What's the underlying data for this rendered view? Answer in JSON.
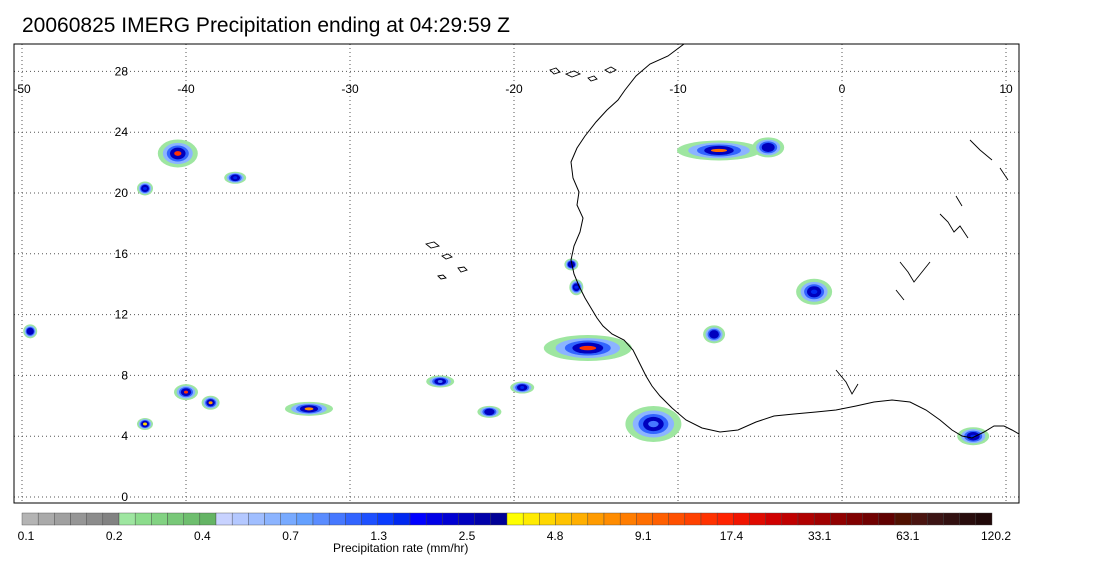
{
  "title": "20060825 IMERG Precipitation ending at 04:29:59 Z",
  "map": {
    "lon_labels": [
      "-50",
      "-40",
      "-30",
      "-20",
      "-10",
      "0",
      "10"
    ],
    "lon_values": [
      -50,
      -40,
      -30,
      -20,
      -10,
      0,
      10
    ],
    "lat_labels": [
      "28",
      "24",
      "20",
      "16",
      "12",
      "8",
      "4",
      "0"
    ],
    "lat_values": [
      28,
      24,
      20,
      16,
      12,
      8,
      4,
      0
    ],
    "lon_range": [
      -50,
      10
    ],
    "lat_range": [
      -0.5,
      29.5
    ],
    "grid": "dotted"
  },
  "colorbar": {
    "title": "Precipitation rate (mm/hr)",
    "tick_labels": [
      "0.1",
      "0.2",
      "0.4",
      "0.7",
      "1.3",
      "2.5",
      "4.8",
      "9.1",
      "17.4",
      "33.1",
      "63.1",
      "120.2"
    ],
    "colors": [
      "#b4b4b4",
      "#aaaaaa",
      "#a0a0a0",
      "#969696",
      "#8c8c8c",
      "#828282",
      "#9ee6a0",
      "#8cdc8c",
      "#82d282",
      "#78c878",
      "#6ebe6e",
      "#64b464",
      "#c8d2ff",
      "#b4c8ff",
      "#a0beff",
      "#8cb4ff",
      "#78aaff",
      "#64a0ff",
      "#5a8cff",
      "#4678ff",
      "#3264ff",
      "#1e50ff",
      "#0a3cff",
      "#0028f0",
      "#0000ff",
      "#0000e6",
      "#0000d2",
      "#0000be",
      "#0000aa",
      "#000096",
      "#ffff00",
      "#ffeb00",
      "#ffd700",
      "#ffc300",
      "#ffaf00",
      "#ff9b00",
      "#ff8c00",
      "#ff7d00",
      "#ff6e00",
      "#ff5f00",
      "#ff5000",
      "#ff4100",
      "#ff3200",
      "#ff2300",
      "#f01400",
      "#e00a00",
      "#d00000",
      "#c00000",
      "#b00000",
      "#a00000",
      "#900000",
      "#800000",
      "#700000",
      "#600000",
      "#501000",
      "#4a1410",
      "#3c1414",
      "#321010",
      "#280c0c",
      "#200808"
    ]
  },
  "precip_cells": [
    {
      "name": "cell-nw-24n",
      "lon": -40.5,
      "lat": 22.6,
      "rx": 18,
      "ry": 12,
      "peak": "#ff3200"
    },
    {
      "name": "cell-nw-21n",
      "lon": -37.0,
      "lat": 21.0,
      "rx": 9,
      "ry": 4,
      "peak": "#0028f0"
    },
    {
      "name": "cell-nw-20n",
      "lon": -42.5,
      "lat": 20.3,
      "rx": 6,
      "ry": 5,
      "peak": "#0028f0"
    },
    {
      "name": "cell-ne-23n",
      "lon": -7.5,
      "lat": 22.8,
      "rx": 40,
      "ry": 8,
      "peak": "#ff6e00"
    },
    {
      "name": "cell-ne-23n-b",
      "lon": -4.5,
      "lat": 23.0,
      "rx": 14,
      "ry": 8,
      "peak": "#0000be"
    },
    {
      "name": "cell-coast-10n",
      "lon": -15.5,
      "lat": 9.8,
      "rx": 42,
      "ry": 11,
      "peak": "#ff3200"
    },
    {
      "name": "cell-coast-14n",
      "lon": -16.2,
      "lat": 13.8,
      "rx": 5,
      "ry": 6,
      "peak": "#0028f0"
    },
    {
      "name": "cell-coast-15n",
      "lon": -16.5,
      "lat": 15.3,
      "rx": 5,
      "ry": 4,
      "peak": "#0000be"
    },
    {
      "name": "cell-atl-7n-a",
      "lon": -40.0,
      "lat": 6.9,
      "rx": 10,
      "ry": 6,
      "peak": "#ff3200"
    },
    {
      "name": "cell-atl-6n",
      "lon": -38.5,
      "lat": 6.2,
      "rx": 7,
      "ry": 5,
      "peak": "#ff9b00"
    },
    {
      "name": "cell-atl-5n",
      "lon": -42.5,
      "lat": 4.8,
      "rx": 6,
      "ry": 4,
      "peak": "#ffd700"
    },
    {
      "name": "cell-atl-6n-b",
      "lon": -32.5,
      "lat": 5.8,
      "rx": 22,
      "ry": 5,
      "peak": "#ff8c00"
    },
    {
      "name": "cell-atl-7n-c",
      "lon": -19.5,
      "lat": 7.2,
      "rx": 10,
      "ry": 4,
      "peak": "#0028f0"
    },
    {
      "name": "cell-atl-7n-d",
      "lon": -24.5,
      "lat": 7.6,
      "rx": 12,
      "ry": 4,
      "peak": "#4678ff"
    },
    {
      "name": "cell-atl-5n-e",
      "lon": -21.5,
      "lat": 5.6,
      "rx": 10,
      "ry": 4,
      "peak": "#0000be"
    },
    {
      "name": "cell-west-11n",
      "lon": -49.5,
      "lat": 10.9,
      "rx": 5,
      "ry": 5,
      "peak": "#0000be"
    },
    {
      "name": "cell-gulf-5n",
      "lon": -11.5,
      "lat": 4.8,
      "rx": 26,
      "ry": 16,
      "peak": "#4678ff"
    },
    {
      "name": "cell-guinea-4n",
      "lon": 8.0,
      "lat": 4.0,
      "rx": 14,
      "ry": 7,
      "peak": "#0028f0"
    },
    {
      "name": "cell-land-13n",
      "lon": -1.7,
      "lat": 13.5,
      "rx": 16,
      "ry": 11,
      "peak": "#0028f0"
    },
    {
      "name": "cell-land-11n",
      "lon": -7.8,
      "lat": 10.7,
      "rx": 9,
      "ry": 7,
      "peak": "#0000be"
    }
  ]
}
